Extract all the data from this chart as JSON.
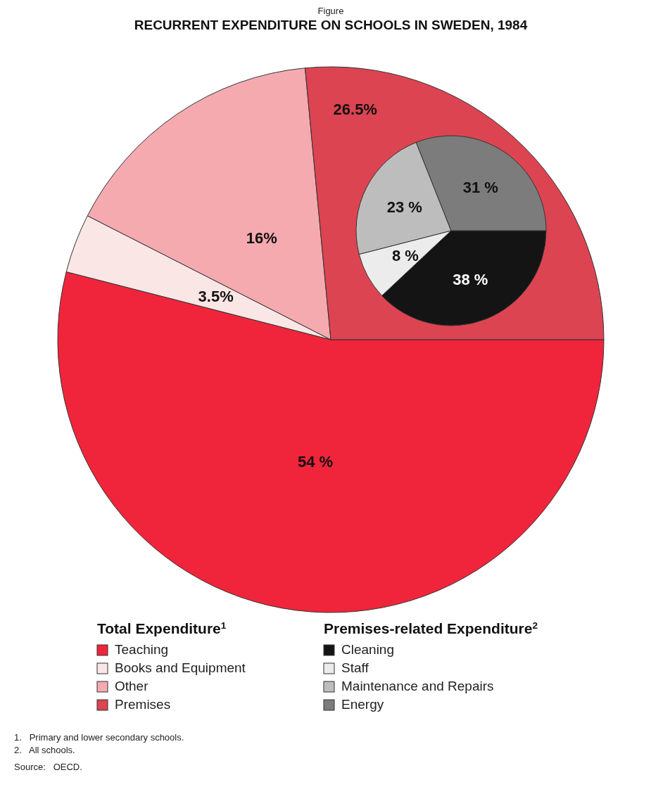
{
  "chart_data": [
    {
      "type": "pie",
      "title": "RECURRENT EXPENDITURE ON SCHOOLS IN SWEDEN, 1984",
      "legend_title": "Total Expenditure$^{1}$",
      "legend": "bottom",
      "categories": [
        "Teaching",
        "Books and Equipment",
        "Other",
        "Premises"
      ],
      "values": [
        54,
        3.5,
        16,
        26.5
      ],
      "value_labels": [
        "54 %",
        "3.5%",
        "16%",
        "26.5%"
      ],
      "colors": [
        "#f0253b",
        "#fbe6e6",
        "#f5aab0",
        "#dc4452"
      ],
      "annotations": [
        "Figure",
        "1.   Primary and lower secondary schools.",
        "2.   All schools.",
        "Source:   OECD."
      ]
    },
    {
      "type": "pie",
      "legend_title": "Premises-related Expenditure$^{2}$",
      "legend": "bottom",
      "categories": [
        "Cleaning",
        "Staff",
        "Maintenance and Repairs",
        "Energy"
      ],
      "values": [
        38,
        8,
        23,
        31
      ],
      "value_labels": [
        "38 %",
        "8 %",
        "23 %",
        "31 %"
      ],
      "colors": [
        "#141414",
        "#ececec",
        "#bdbdbd",
        "#7c7c7c"
      ]
    }
  ]
}
